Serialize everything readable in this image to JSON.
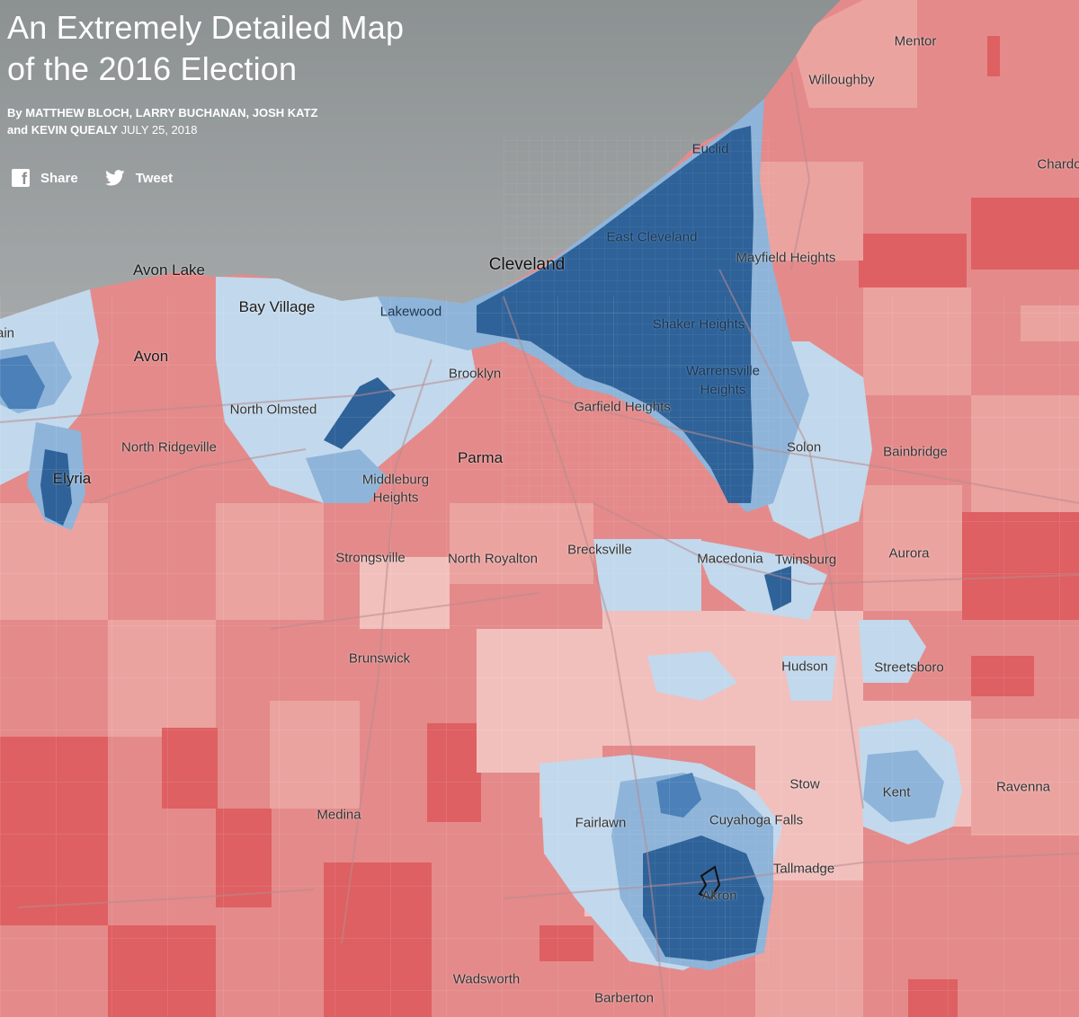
{
  "header": {
    "title_line1": "An Extremely Detailed Map",
    "title_line2": "of the 2016 Election",
    "byline_names_line1": "By MATTHEW BLOCH, LARRY BUCHANAN, JOSH KATZ",
    "byline_names_line2": "and KEVIN QUEALY",
    "date": "JULY 25, 2018"
  },
  "share": {
    "facebook_label": "Share",
    "facebook_icon": "facebook-icon",
    "twitter_label": "Tweet",
    "twitter_icon": "twitter-icon"
  },
  "colors": {
    "lake": "#8e9394",
    "deep_blue": "#2e6299",
    "blue": "#4b80b8",
    "light_blue": "#8eb4d9",
    "pale_blue": "#c2d8ec",
    "pale_red": "#f1c0bd",
    "light_red": "#eba3a0",
    "red": "#e48a8a",
    "deep_red": "#de6062"
  },
  "cities": [
    {
      "label": "Cleveland",
      "size": "big"
    },
    {
      "label": "Parma",
      "size": "mid"
    },
    {
      "label": "Avon Lake",
      "size": "mid"
    },
    {
      "label": "Bay Village",
      "size": "mid"
    },
    {
      "label": "Avon",
      "size": "mid"
    },
    {
      "label": "Elyria",
      "size": "mid"
    },
    {
      "label": "Mentor",
      "size": "normal"
    },
    {
      "label": "Willoughby",
      "size": "normal"
    },
    {
      "label": "Chardo",
      "size": "normal"
    },
    {
      "label": "Euclid",
      "size": "normal"
    },
    {
      "label": "East Cleveland",
      "size": "normal"
    },
    {
      "label": "Mayfield Heights",
      "size": "normal"
    },
    {
      "label": "Lakewood",
      "size": "normal"
    },
    {
      "label": "Shaker Heights",
      "size": "normal"
    },
    {
      "label": "Brooklyn",
      "size": "normal"
    },
    {
      "label": "Warrensville",
      "size": "normal"
    },
    {
      "label": "Heights",
      "size": "normal"
    },
    {
      "label": "Garfield Heights",
      "size": "normal"
    },
    {
      "label": "North Olmsted",
      "size": "normal"
    },
    {
      "label": "North Ridgeville",
      "size": "normal"
    },
    {
      "label": "Middleburg",
      "size": "normal"
    },
    {
      "label": "Heights",
      "size": "normal"
    },
    {
      "label": "Solon",
      "size": "normal"
    },
    {
      "label": "Bainbridge",
      "size": "normal"
    },
    {
      "label": "Strongsville",
      "size": "normal"
    },
    {
      "label": "North Royalton",
      "size": "normal"
    },
    {
      "label": "Brecksville",
      "size": "normal"
    },
    {
      "label": "Macedonia",
      "size": "normal"
    },
    {
      "label": "Twinsburg",
      "size": "normal"
    },
    {
      "label": "Aurora",
      "size": "normal"
    },
    {
      "label": "Brunswick",
      "size": "normal"
    },
    {
      "label": "Hudson",
      "size": "normal"
    },
    {
      "label": "Streetsboro",
      "size": "normal"
    },
    {
      "label": "Stow",
      "size": "normal"
    },
    {
      "label": "Kent",
      "size": "normal"
    },
    {
      "label": "Ravenna",
      "size": "normal"
    },
    {
      "label": "Medina",
      "size": "normal"
    },
    {
      "label": "Fairlawn",
      "size": "normal"
    },
    {
      "label": "Cuyahoga Falls",
      "size": "normal"
    },
    {
      "label": "Tallmadge",
      "size": "normal"
    },
    {
      "label": "Akron",
      "size": "normal"
    },
    {
      "label": "Wadsworth",
      "size": "normal"
    },
    {
      "label": "Barberton",
      "size": "normal"
    },
    {
      "label": "ain",
      "size": "normal"
    }
  ]
}
